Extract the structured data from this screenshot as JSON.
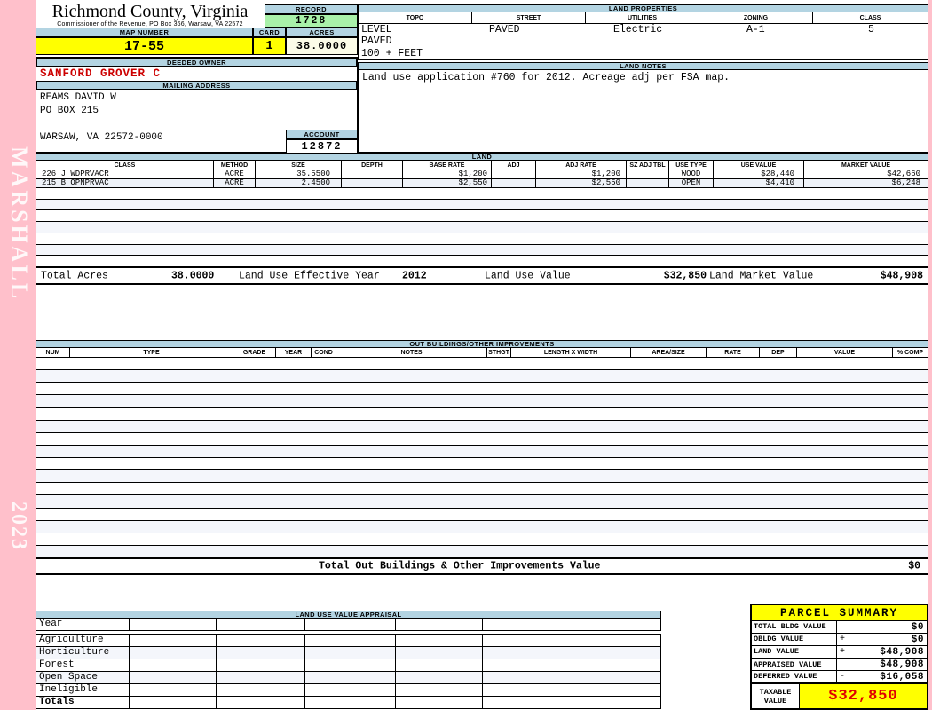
{
  "sidebar": {
    "vendor": "MARSHALL",
    "year": "2023"
  },
  "county": {
    "title": "Richmond County, Virginia",
    "subtitle": "Commissioner of the Revenue, PO Box 366, Warsaw, VA 22572"
  },
  "record": {
    "label": "RECORD",
    "value": "1728"
  },
  "map": {
    "label": "MAP NUMBER",
    "value": "17-55"
  },
  "card": {
    "label": "CARD",
    "value": "1"
  },
  "acres": {
    "label": "ACRES",
    "value": "38.0000"
  },
  "owner": {
    "label": "DEEDED OWNER",
    "value": "SANFORD GROVER C"
  },
  "mailing": {
    "label": "MAILING ADDRESS",
    "lines": [
      "REAMS DAVID W",
      "PO BOX 215",
      " ",
      "WARSAW, VA 22572-0000"
    ]
  },
  "account": {
    "label": "ACCOUNT",
    "value": "12872"
  },
  "land_properties": {
    "title": "LAND PROPERTIES",
    "columns": [
      "TOPO",
      "STREET",
      "UTILITIES",
      "ZONING",
      "CLASS"
    ],
    "values": {
      "topo1": "LEVEL",
      "topo2": "PAVED",
      "topo3": "100 + FEET",
      "street": "PAVED",
      "utilities": "Electric",
      "zoning": "A-1",
      "class": "5"
    }
  },
  "land_notes": {
    "title": "LAND NOTES",
    "text": "Land use application #760 for 2012. Acreage adj per FSA map."
  },
  "land": {
    "title": "LAND",
    "columns": [
      "CLASS",
      "METHOD",
      "SIZE",
      "DEPTH",
      "BASE RATE",
      "ADJ",
      "ADJ RATE",
      "SZ ADJ TBL",
      "USE TYPE",
      "USE VALUE",
      "MARKET VALUE"
    ],
    "rows": [
      {
        "class": "226 J WDPRVACR",
        "method": "ACRE",
        "size": "35.5500",
        "depth": "",
        "base_rate": "$1,200",
        "adj": "",
        "adj_rate": "$1,200",
        "sz_adj_tbl": "",
        "use_type": "WOOD",
        "use_value": "$28,440",
        "market_value": "$42,660"
      },
      {
        "class": "215 B OPNPRVAC",
        "method": "ACRE",
        "size": "2.4500",
        "depth": "",
        "base_rate": "$2,550",
        "adj": "",
        "adj_rate": "$2,550",
        "sz_adj_tbl": "",
        "use_type": "OPEN",
        "use_value": "$4,410",
        "market_value": "$6,248"
      }
    ],
    "totals": {
      "total_acres_label": "Total Acres",
      "total_acres": "38.0000",
      "effective_year_label": "Land Use Effective Year",
      "effective_year": "2012",
      "use_value_label": "Land Use Value",
      "use_value": "$32,850",
      "market_value_label": "Land Market Value",
      "market_value": "$48,908"
    }
  },
  "out_buildings": {
    "title": "OUT BUILDINGS/OTHER IMPROVEMENTS",
    "columns": [
      "NUM",
      "TYPE",
      "GRADE",
      "YEAR",
      "COND",
      "NOTES",
      "STHGT",
      "LENGTH X WIDTH",
      "AREA/SIZE",
      "RATE",
      "DEP",
      "VALUE",
      "% COMP"
    ],
    "total_label": "Total Out Buildings & Other Improvements Value",
    "total_value": "$0"
  },
  "appraisal": {
    "title": "LAND USE VALUE APPRAISAL",
    "row_labels": [
      "Year",
      "Agriculture",
      "Horticulture",
      "Forest",
      "Open Space",
      "Ineligible",
      "Totals"
    ]
  },
  "parcel_summary": {
    "title": "PARCEL SUMMARY",
    "rows": [
      {
        "label": "TOTAL BLDG VALUE",
        "sign": "",
        "value": "$0"
      },
      {
        "label": "OBLDG VALUE",
        "sign": "+",
        "value": "$0"
      },
      {
        "label": "LAND VALUE",
        "sign": "+",
        "value": "$48,908"
      },
      {
        "label": "APPRAISED VALUE",
        "sign": "",
        "value": "$48,908"
      },
      {
        "label": "DEFERRED VALUE",
        "sign": "-",
        "value": "$16,058"
      }
    ],
    "taxable": {
      "label": "TAXABLE VALUE",
      "value": "$32,850"
    }
  },
  "colors": {
    "page_pink": "#FFC0CB",
    "header_blue": "#B3D4E2",
    "record_green": "#A9F1A9",
    "highlight_yellow": "#FFFF00",
    "acres_cream": "#FCFCE8",
    "owner_red": "#CC0000",
    "taxable_red": "#E00000"
  }
}
